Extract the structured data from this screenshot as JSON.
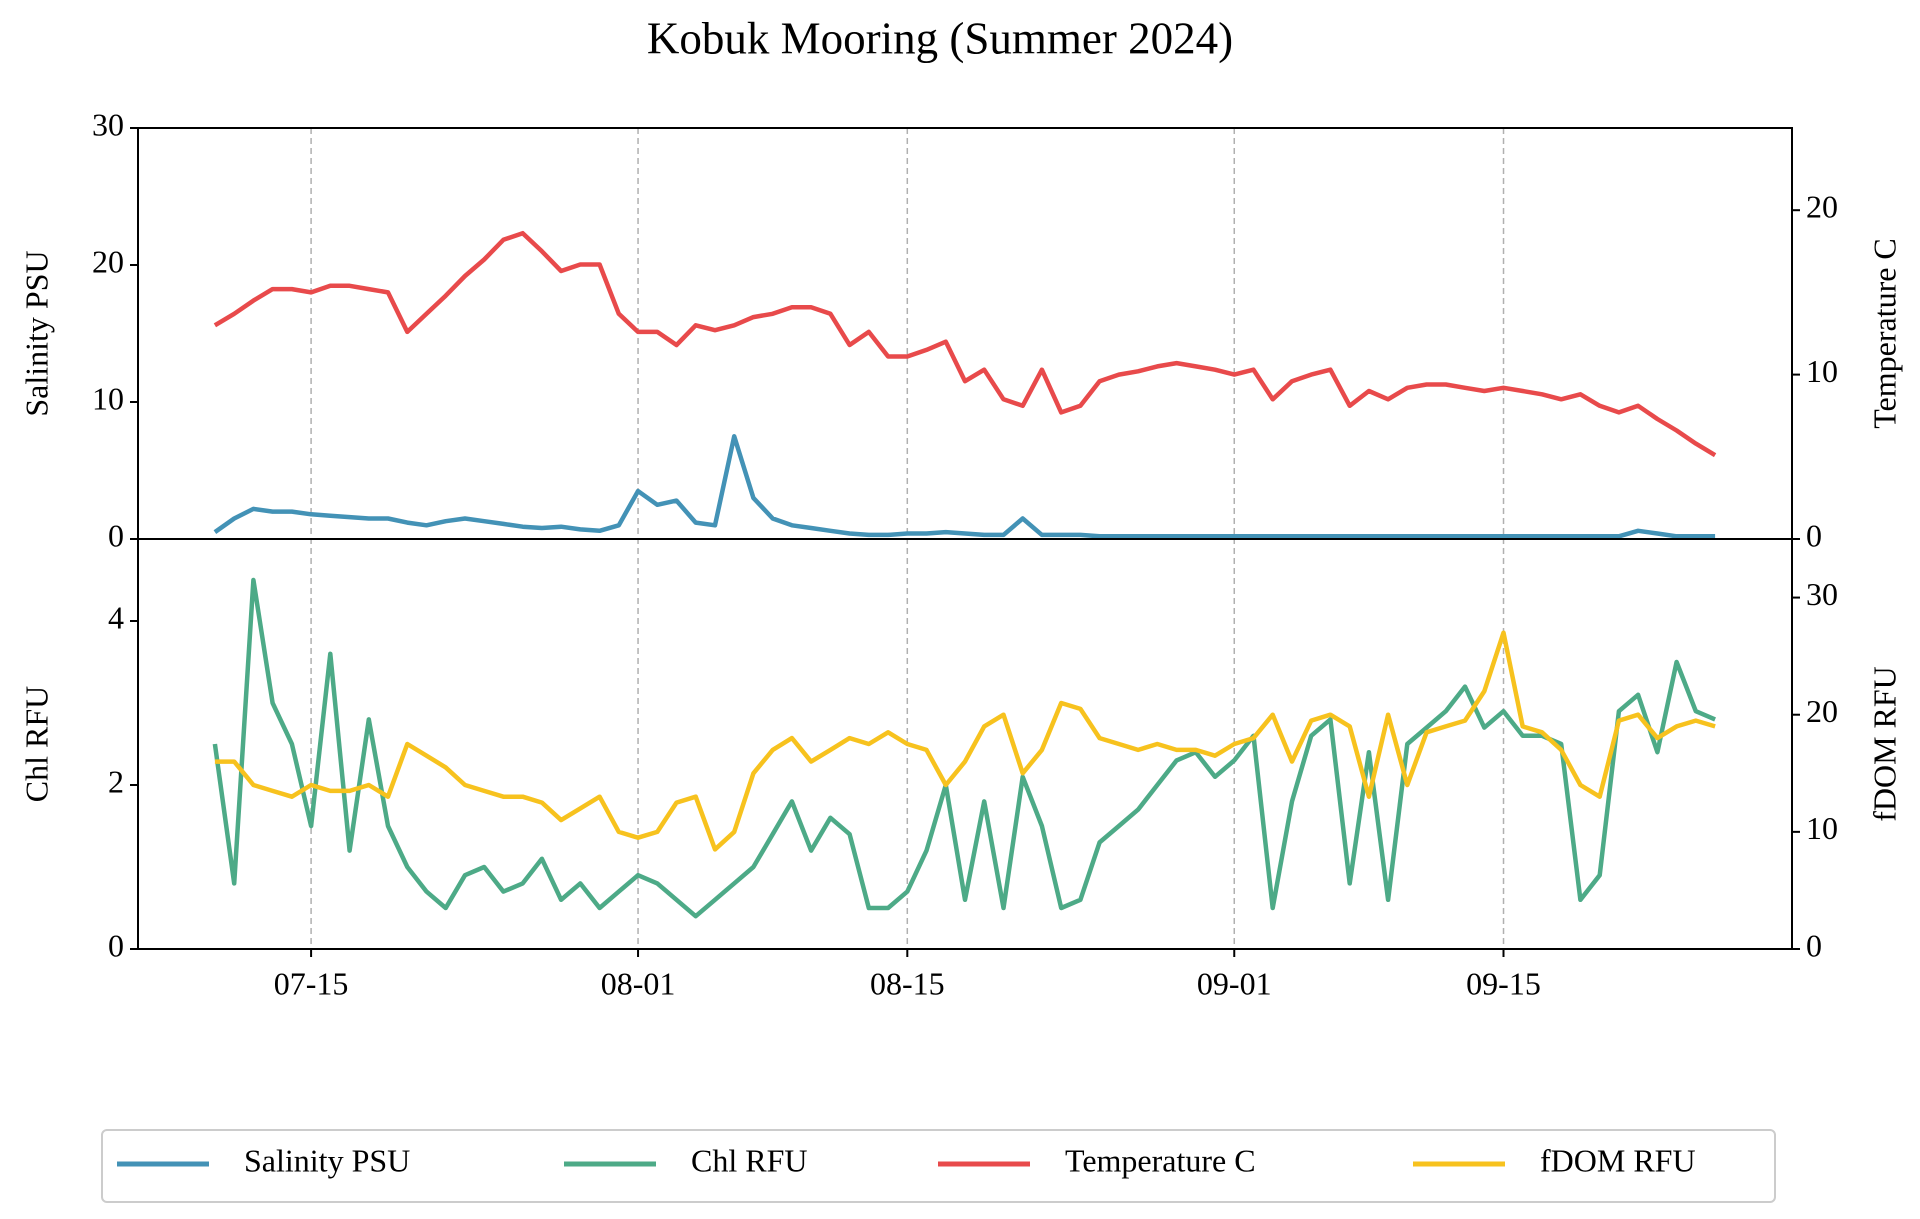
{
  "chart_data": {
    "type": "line",
    "title": "Kobuk Mooring (Summer 2024)",
    "x": [
      "07-10",
      "07-11",
      "07-12",
      "07-13",
      "07-14",
      "07-15",
      "07-16",
      "07-17",
      "07-18",
      "07-19",
      "07-20",
      "07-21",
      "07-22",
      "07-23",
      "07-24",
      "07-25",
      "07-26",
      "07-27",
      "07-28",
      "07-29",
      "07-30",
      "07-31",
      "08-01",
      "08-02",
      "08-03",
      "08-04",
      "08-05",
      "08-06",
      "08-07",
      "08-08",
      "08-09",
      "08-10",
      "08-11",
      "08-12",
      "08-13",
      "08-14",
      "08-15",
      "08-16",
      "08-17",
      "08-18",
      "08-19",
      "08-20",
      "08-21",
      "08-22",
      "08-23",
      "08-24",
      "08-25",
      "08-26",
      "08-27",
      "08-28",
      "08-29",
      "08-30",
      "08-31",
      "09-01",
      "09-02",
      "09-03",
      "09-04",
      "09-05",
      "09-06",
      "09-07",
      "09-08",
      "09-09",
      "09-10",
      "09-11",
      "09-12",
      "09-13",
      "09-14",
      "09-15",
      "09-16",
      "09-17",
      "09-18",
      "09-19",
      "09-20",
      "09-21",
      "09-22",
      "09-23",
      "09-24",
      "09-25",
      "09-26"
    ],
    "xlim": [
      "07-06",
      "09-30"
    ],
    "xticks": [
      "07-15",
      "08-01",
      "08-15",
      "09-01",
      "09-15"
    ],
    "grid": "x",
    "legend": "bottom",
    "panels": [
      {
        "ylabel": "Salinity PSU",
        "y2label": "Temperature C",
        "ylim": [
          0,
          30
        ],
        "yticks": [
          0,
          10,
          20,
          30
        ],
        "y2lim": [
          0,
          25
        ],
        "y2ticks": [
          0,
          10,
          20
        ],
        "series": [
          {
            "name": "Salinity PSU",
            "color": "#4392b6",
            "axis": "y",
            "values": [
              0.5,
              1.5,
              2.2,
              2.0,
              2.0,
              1.8,
              1.7,
              1.6,
              1.5,
              1.5,
              1.2,
              1.0,
              1.3,
              1.5,
              1.3,
              1.1,
              0.9,
              0.8,
              0.9,
              0.7,
              0.6,
              1.0,
              3.5,
              2.5,
              2.8,
              1.2,
              1.0,
              7.5,
              3.0,
              1.5,
              1.0,
              0.8,
              0.6,
              0.4,
              0.3,
              0.3,
              0.4,
              0.4,
              0.5,
              0.4,
              0.3,
              0.3,
              1.5,
              0.3,
              0.3,
              0.3,
              0.2,
              0.2,
              0.2,
              0.2,
              0.2,
              0.2,
              0.2,
              0.2,
              0.2,
              0.2,
              0.2,
              0.2,
              0.2,
              0.2,
              0.2,
              0.2,
              0.2,
              0.2,
              0.2,
              0.2,
              0.2,
              0.2,
              0.2,
              0.2,
              0.2,
              0.2,
              0.2,
              0.2,
              0.6,
              0.4,
              0.2,
              0.2,
              0.2
            ]
          },
          {
            "name": "Temperature C",
            "color": "#e84a4b",
            "axis": "y2",
            "values": [
              13,
              13.7,
              14.5,
              15.2,
              15.2,
              15,
              15.4,
              15.4,
              15.2,
              15,
              12.6,
              13.7,
              14.8,
              16,
              17,
              18.2,
              18.6,
              17.5,
              16.3,
              16.7,
              16.7,
              13.7,
              12.6,
              12.6,
              11.8,
              13,
              12.7,
              13,
              13.5,
              13.7,
              14.1,
              14.1,
              13.7,
              11.8,
              12.6,
              11.1,
              11.1,
              11.5,
              12,
              9.6,
              10.3,
              8.5,
              8.1,
              10.3,
              7.7,
              8.1,
              9.6,
              10,
              10.2,
              10.5,
              10.7,
              10.5,
              10.3,
              10,
              10.3,
              8.5,
              9.6,
              10,
              10.3,
              8.1,
              9,
              8.5,
              9.2,
              9.4,
              9.4,
              9.2,
              9,
              9.2,
              9,
              8.8,
              8.5,
              8.8,
              8.1,
              7.7,
              8.1,
              7.3,
              6.6,
              5.8,
              5.1
            ]
          }
        ]
      },
      {
        "ylabel": "Chl RFU",
        "y2label": "fDOM RFU",
        "ylim": [
          0,
          5
        ],
        "yticks": [
          0,
          2,
          4
        ],
        "y2lim": [
          0,
          35
        ],
        "y2ticks": [
          0,
          10,
          20,
          30
        ],
        "series": [
          {
            "name": "Chl RFU",
            "color": "#4daa87",
            "axis": "y",
            "values": [
              2.5,
              0.8,
              4.5,
              3.0,
              2.5,
              1.5,
              3.6,
              1.2,
              2.8,
              1.5,
              1.0,
              0.7,
              0.5,
              0.9,
              1.0,
              0.7,
              0.8,
              1.1,
              0.6,
              0.8,
              0.5,
              0.7,
              0.9,
              0.8,
              0.6,
              0.4,
              0.6,
              0.8,
              1.0,
              1.4,
              1.8,
              1.2,
              1.6,
              1.4,
              0.5,
              0.5,
              0.7,
              1.2,
              2.0,
              0.6,
              1.8,
              0.5,
              2.1,
              1.5,
              0.5,
              0.6,
              1.3,
              1.5,
              1.7,
              2.0,
              2.3,
              2.4,
              2.1,
              2.3,
              2.6,
              0.5,
              1.8,
              2.6,
              2.8,
              0.8,
              2.4,
              0.6,
              2.5,
              2.7,
              2.9,
              3.2,
              2.7,
              2.9,
              2.6,
              2.6,
              2.5,
              0.6,
              0.9,
              2.9,
              3.1,
              2.4,
              3.5,
              2.9,
              2.8
            ]
          },
          {
            "name": "fDOM RFU",
            "color": "#f7c21e",
            "axis": "y2",
            "values": [
              16,
              16,
              14,
              13.5,
              13,
              14,
              13.5,
              13.5,
              14,
              13,
              17.5,
              16.5,
              15.5,
              14,
              13.5,
              13,
              13,
              12.5,
              11,
              12,
              13,
              10,
              9.5,
              10,
              12.5,
              13,
              8.5,
              10,
              15,
              17,
              18,
              16,
              17,
              18,
              17.5,
              18.5,
              17.5,
              17,
              14,
              16,
              19,
              20,
              15,
              17,
              21,
              20.5,
              18,
              17.5,
              17,
              17.5,
              17,
              17,
              16.5,
              17.5,
              18,
              20,
              16,
              19.5,
              20,
              19,
              13,
              20,
              14,
              18.5,
              19,
              19.5,
              22,
              27,
              19,
              18.5,
              17,
              14,
              13,
              19.5,
              20,
              18,
              19,
              19.5,
              19
            ]
          }
        ]
      }
    ]
  }
}
